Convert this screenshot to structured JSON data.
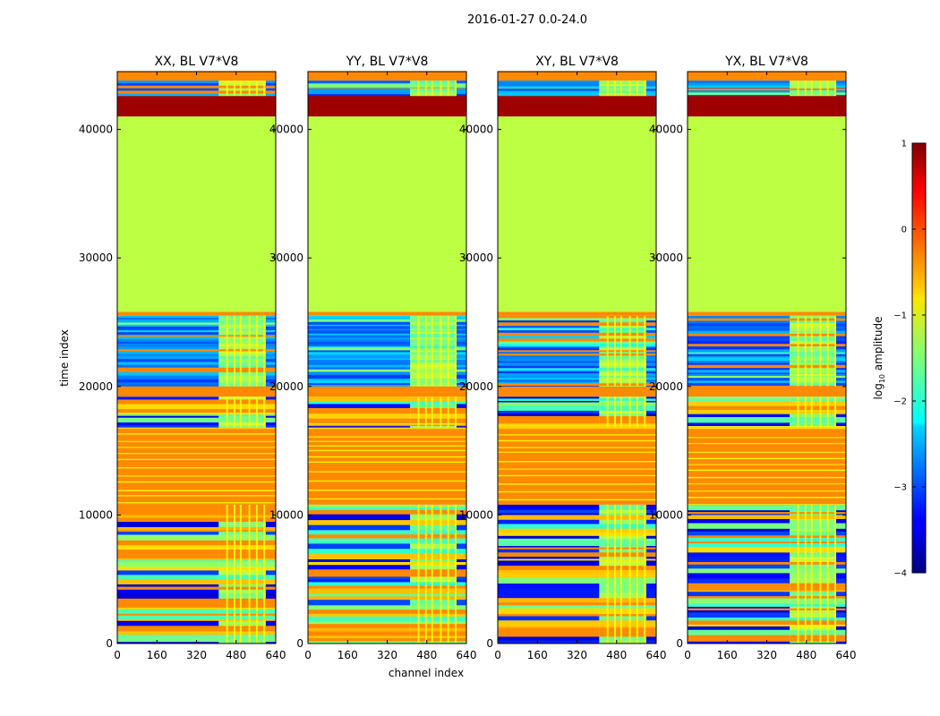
{
  "figure": {
    "suptitle": "2016-01-27 0.0-24.0",
    "xlabel": "channel index",
    "ylabel": "time index"
  },
  "chart_data": {
    "type": "heatmap",
    "x_ticks": [
      "0",
      "160",
      "320",
      "480",
      "640"
    ],
    "x_tick_values": [
      0,
      160,
      320,
      480,
      640
    ],
    "y_ticks": [
      "0",
      "10000",
      "20000",
      "30000",
      "40000"
    ],
    "y_tick_values": [
      0,
      10000,
      20000,
      30000,
      40000
    ],
    "xlim": [
      0,
      640
    ],
    "ylim": [
      0,
      44500
    ],
    "panels": [
      {
        "title": "XX, BL V7*V8"
      },
      {
        "title": "YY, BL V7*V8"
      },
      {
        "title": "XY, BL V7*V8"
      },
      {
        "title": "YX, BL V7*V8"
      }
    ],
    "colorbar": {
      "label_prefix": "log",
      "label_sub": "10",
      "label_suffix": " amplitude",
      "range": [
        -4,
        1
      ],
      "ticks": [
        "1",
        "0",
        "−1",
        "−2",
        "−3",
        "−4"
      ],
      "tick_values": [
        1,
        0,
        -1,
        -2,
        -3,
        -4
      ],
      "colormap": "jet"
    },
    "bands": [
      {
        "from": 43800,
        "to": 44500,
        "value": -0.3,
        "kind": "solid"
      },
      {
        "from": 43200,
        "to": 43800,
        "value": -3.5,
        "kind": "noisy"
      },
      {
        "from": 42600,
        "to": 43200,
        "value": -1.5,
        "kind": "noisy"
      },
      {
        "from": 41000,
        "to": 42600,
        "value": 0.85,
        "kind": "solid"
      },
      {
        "from": 25800,
        "to": 41000,
        "value": -1.2,
        "kind": "solid"
      },
      {
        "from": 25500,
        "to": 25800,
        "value": -0.3,
        "kind": "solid"
      },
      {
        "from": 20000,
        "to": 25500,
        "value": -2.8,
        "kind": "noisy"
      },
      {
        "from": 19200,
        "to": 20000,
        "value": -0.3,
        "kind": "solid"
      },
      {
        "from": 16800,
        "to": 19200,
        "value": -2.5,
        "kind": "striped"
      },
      {
        "from": 10800,
        "to": 16800,
        "value": -0.3,
        "kind": "orange"
      },
      {
        "from": 10000,
        "to": 10800,
        "value": -0.6,
        "kind": "striped"
      },
      {
        "from": 0,
        "to": 10000,
        "value": -2.2,
        "kind": "striped"
      }
    ]
  }
}
